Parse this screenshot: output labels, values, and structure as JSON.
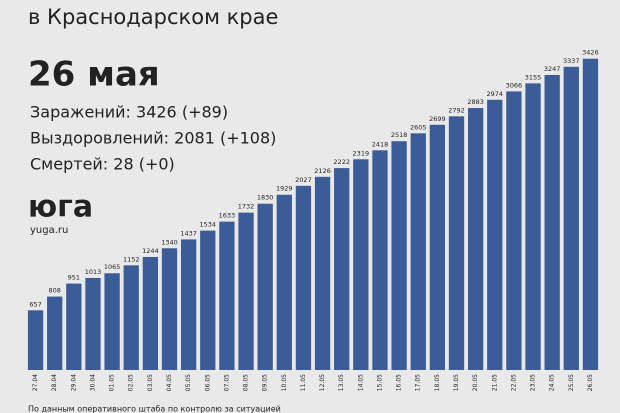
{
  "chart_data": {
    "type": "bar",
    "title": "в Краснодарском крае",
    "date_heading": "26 мая",
    "annotations": [
      "Заражений: 3426 (+89)",
      "Выздоровлений: 2081 (+108)",
      "Смертей: 28 (+0)"
    ],
    "brand": "юга",
    "site": "yuga.ru",
    "source": "По данным оперативного штаба по контролю за ситуацией",
    "categories": [
      "27.04",
      "28.04",
      "29.04",
      "30.04",
      "01.05",
      "02.05",
      "03.05",
      "04.05",
      "05.05",
      "06.05",
      "07.05",
      "08.05",
      "09.05",
      "10.05",
      "11.05",
      "12.05",
      "13.05",
      "14.05",
      "15.05",
      "16.05",
      "17.05",
      "18.05",
      "19.05",
      "20.05",
      "21.05",
      "22.05",
      "23.05",
      "24.05",
      "25.05",
      "26.05"
    ],
    "values": [
      657,
      808,
      951,
      1013,
      1065,
      1152,
      1244,
      1340,
      1437,
      1534,
      1633,
      1732,
      1830,
      1929,
      2027,
      2126,
      2222,
      2319,
      2418,
      2518,
      2605,
      2699,
      2792,
      2883,
      2974,
      3066,
      3155,
      3247,
      3337,
      3426
    ],
    "color": "#3b5c96",
    "ylim": [
      0,
      3500
    ]
  }
}
